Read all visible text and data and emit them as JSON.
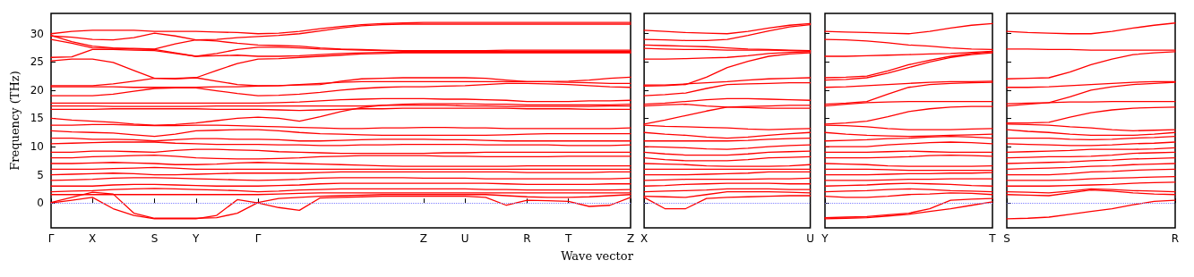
{
  "chart_data": [
    {
      "type": "line",
      "ylabel": "Frequency (THz)",
      "xlabel": "Wave vector",
      "color": "#ff0000",
      "marker": "none",
      "categories": [
        "Γ",
        null,
        "X",
        null,
        null,
        "S",
        null,
        "Y",
        null,
        null,
        "Γ",
        null,
        null,
        null,
        null,
        null,
        null,
        null,
        "Z",
        null,
        "U",
        null,
        null,
        "R",
        null,
        "T",
        null,
        null,
        "Z"
      ],
      "ylim": [
        -4.4,
        33.6
      ],
      "yticks": [
        0,
        5,
        10,
        15,
        20,
        25,
        30
      ],
      "ref_lines": [
        {
          "axis": "y",
          "value": 0,
          "color": "#7f7fff",
          "line_style": "dotted"
        }
      ],
      "series": [
        {
          "values": [
            30.0,
            30.4,
            30.6,
            30.6,
            30.6,
            30.4,
            30.4,
            30.4,
            30.3,
            30.2,
            30.0,
            30.1,
            30.4,
            30.9,
            31.3,
            31.6,
            31.8,
            31.9,
            32.0,
            32.0,
            32.0,
            32.0,
            32.0,
            32.0,
            32.0,
            32.0,
            32.0,
            32.0,
            32.0
          ]
        },
        {
          "values": [
            29.6,
            29.4,
            29.0,
            28.9,
            29.3,
            30.1,
            29.6,
            28.9,
            29.0,
            29.3,
            29.5,
            29.7,
            30.0,
            30.5,
            31.0,
            31.4,
            31.6,
            31.7,
            31.7,
            31.7,
            31.7,
            31.7,
            31.7,
            31.7,
            31.7,
            31.7,
            31.7,
            31.7,
            31.7
          ]
        },
        {
          "values": [
            29.0,
            28.3,
            27.5,
            27.4,
            27.4,
            27.3,
            28.2,
            28.9,
            28.7,
            28.3,
            28.0,
            27.9,
            27.8,
            27.5,
            27.3,
            27.2,
            27.1,
            27.0,
            27.0,
            27.0,
            27.0,
            27.0,
            27.1,
            27.1,
            27.1,
            27.1,
            27.1,
            27.1,
            27.1
          ]
        },
        {
          "values": [
            29.7,
            28.6,
            27.8,
            27.5,
            27.3,
            27.2,
            26.6,
            26.0,
            26.5,
            27.2,
            27.6,
            27.6,
            27.5,
            27.3,
            27.2,
            27.1,
            27.0,
            26.9,
            26.9,
            26.9,
            26.9,
            26.9,
            26.9,
            26.9,
            26.9,
            26.9,
            26.9,
            26.9,
            26.9
          ]
        },
        {
          "values": [
            25.8,
            25.9,
            27.2,
            27.2,
            27.1,
            27.0,
            26.5,
            26.0,
            26.1,
            26.2,
            26.0,
            26.0,
            26.1,
            26.3,
            26.5,
            26.6,
            26.7,
            26.7,
            26.7,
            26.7,
            26.7,
            26.7,
            26.7,
            26.7,
            26.7,
            26.7,
            26.7,
            26.7,
            26.7
          ]
        },
        {
          "values": [
            25.2,
            25.5,
            25.5,
            24.9,
            23.5,
            22.1,
            22.0,
            22.2,
            23.5,
            24.7,
            25.5,
            25.6,
            25.8,
            26.0,
            26.2,
            26.4,
            26.5,
            26.6,
            26.6,
            26.6,
            26.6,
            26.6,
            26.6,
            26.6,
            26.6,
            26.6,
            26.6,
            26.6,
            26.6
          ]
        },
        {
          "values": [
            20.8,
            20.8,
            20.8,
            21.1,
            21.6,
            22.1,
            22.1,
            22.2,
            21.6,
            21.0,
            20.8,
            20.8,
            20.9,
            21.0,
            21.6,
            22.0,
            22.1,
            22.2,
            22.2,
            22.2,
            22.2,
            22.1,
            21.8,
            21.5,
            21.5,
            21.6,
            21.8,
            22.1,
            22.3
          ]
        },
        {
          "values": [
            20.6,
            20.6,
            20.6,
            20.6,
            20.5,
            20.5,
            20.5,
            20.5,
            20.6,
            20.6,
            20.7,
            20.8,
            21.0,
            21.2,
            21.4,
            21.5,
            21.5,
            21.5,
            21.5,
            21.5,
            21.5,
            21.5,
            21.5,
            21.5,
            21.5,
            21.4,
            21.3,
            21.2,
            21.2
          ]
        },
        {
          "values": [
            19.0,
            19.0,
            19.0,
            19.3,
            19.8,
            20.3,
            20.4,
            20.4,
            19.9,
            19.4,
            19.0,
            19.1,
            19.3,
            19.6,
            20.0,
            20.3,
            20.5,
            20.6,
            20.6,
            20.7,
            20.8,
            21.0,
            21.2,
            21.2,
            21.1,
            21.0,
            20.8,
            20.6,
            20.5
          ]
        },
        {
          "values": [
            17.7,
            17.7,
            17.7,
            17.7,
            17.7,
            17.7,
            17.7,
            17.7,
            17.7,
            17.7,
            17.7,
            17.8,
            17.9,
            18.1,
            18.3,
            18.4,
            18.5,
            18.5,
            18.5,
            18.4,
            18.4,
            18.3,
            18.2,
            18.0,
            18.0,
            18.0,
            18.1,
            18.1,
            18.2
          ]
        },
        {
          "values": [
            17.2,
            17.2,
            17.2,
            17.1,
            17.1,
            17.1,
            17.1,
            17.1,
            17.2,
            17.2,
            17.2,
            17.2,
            17.2,
            17.2,
            17.2,
            17.2,
            17.3,
            17.3,
            17.3,
            17.3,
            17.2,
            17.2,
            17.1,
            17.1,
            17.1,
            17.1,
            17.1,
            17.2,
            17.2
          ]
        },
        {
          "values": [
            16.6,
            16.6,
            16.6,
            16.7,
            16.7,
            16.7,
            16.7,
            16.7,
            16.6,
            16.6,
            16.6,
            16.5,
            16.4,
            16.5,
            16.6,
            16.7,
            16.7,
            16.8,
            16.8,
            16.8,
            16.8,
            16.8,
            16.8,
            16.7,
            16.7,
            16.7,
            16.6,
            16.6,
            16.6
          ]
        },
        {
          "values": [
            15.0,
            14.7,
            14.5,
            14.3,
            14.0,
            13.8,
            13.9,
            14.2,
            14.6,
            15.0,
            15.2,
            15.0,
            14.5,
            15.3,
            16.2,
            16.9,
            17.3,
            17.5,
            17.6,
            17.6,
            17.6,
            17.5,
            17.5,
            17.4,
            17.4,
            17.4,
            17.4,
            17.4,
            17.5
          ]
        },
        {
          "values": [
            13.8,
            13.8,
            13.9,
            13.9,
            13.8,
            13.7,
            13.7,
            13.8,
            13.8,
            13.7,
            13.6,
            13.5,
            13.4,
            13.3,
            13.2,
            13.2,
            13.3,
            13.3,
            13.4,
            13.4,
            13.3,
            13.3,
            13.2,
            13.2,
            13.2,
            13.2,
            13.2,
            13.2,
            13.3
          ]
        },
        {
          "values": [
            12.8,
            12.6,
            12.5,
            12.4,
            12.1,
            11.8,
            12.2,
            12.8,
            12.9,
            13.0,
            13.0,
            12.8,
            12.5,
            12.3,
            12.2,
            12.1,
            12.0,
            12.0,
            12.0,
            12.0,
            12.0,
            12.0,
            12.1,
            12.2,
            12.3,
            12.3,
            12.3,
            12.3,
            12.3
          ]
        },
        {
          "values": [
            11.5,
            11.5,
            11.3,
            11.3,
            11.2,
            11.0,
            11.2,
            11.4,
            11.4,
            11.3,
            11.3,
            11.2,
            11.0,
            11.0,
            11.1,
            11.2,
            11.3,
            11.3,
            11.3,
            11.2,
            11.2,
            11.1,
            11.0,
            11.0,
            11.0,
            11.0,
            11.0,
            11.0,
            11.0
          ]
        },
        {
          "values": [
            10.5,
            10.6,
            10.7,
            10.8,
            10.8,
            10.8,
            10.6,
            10.5,
            10.4,
            10.4,
            10.4,
            10.3,
            10.3,
            10.2,
            10.2,
            10.3,
            10.3,
            10.4,
            10.4,
            10.4,
            10.4,
            10.3,
            10.3,
            10.3,
            10.3,
            10.2,
            10.2,
            10.2,
            10.3
          ]
        },
        {
          "values": [
            9.0,
            9.0,
            9.2,
            9.2,
            9.1,
            9.0,
            9.3,
            9.5,
            9.5,
            9.4,
            9.3,
            9.1,
            9.0,
            8.9,
            8.8,
            8.8,
            8.8,
            8.8,
            8.8,
            8.9,
            8.9,
            9.0,
            9.0,
            9.0,
            9.0,
            9.0,
            9.0,
            9.0,
            9.0
          ]
        },
        {
          "values": [
            8.0,
            8.0,
            8.2,
            8.3,
            8.4,
            8.5,
            8.3,
            8.0,
            7.9,
            7.8,
            7.8,
            7.9,
            8.0,
            8.2,
            8.3,
            8.4,
            8.4,
            8.4,
            8.4,
            8.3,
            8.3,
            8.2,
            8.2,
            8.2,
            8.2,
            8.3,
            8.3,
            8.3,
            8.3
          ]
        },
        {
          "values": [
            7.0,
            7.0,
            7.1,
            7.2,
            7.1,
            7.0,
            6.8,
            6.8,
            6.9,
            7.1,
            7.2,
            7.1,
            7.0,
            6.9,
            6.8,
            6.7,
            6.6,
            6.5,
            6.5,
            6.5,
            6.5,
            6.5,
            6.5,
            6.6,
            6.6,
            6.6,
            6.6,
            6.6,
            6.6
          ]
        },
        {
          "values": [
            6.0,
            6.0,
            6.0,
            6.1,
            6.2,
            6.3,
            6.2,
            6.0,
            6.0,
            6.0,
            6.0,
            6.0,
            6.0,
            6.0,
            6.0,
            6.0,
            6.0,
            6.0,
            6.0,
            6.0,
            6.0,
            6.0,
            6.0,
            6.0,
            6.0,
            6.0,
            6.0,
            6.0,
            6.0
          ]
        },
        {
          "values": [
            5.0,
            5.1,
            5.2,
            5.3,
            5.2,
            5.0,
            5.0,
            5.1,
            5.2,
            5.3,
            5.3,
            5.3,
            5.3,
            5.4,
            5.5,
            5.5,
            5.5,
            5.5,
            5.5,
            5.5,
            5.5,
            5.5,
            5.5,
            5.4,
            5.4,
            5.4,
            5.4,
            5.5,
            5.5
          ]
        },
        {
          "values": [
            4.0,
            4.1,
            4.2,
            4.4,
            4.5,
            4.5,
            4.4,
            4.3,
            4.2,
            4.1,
            4.0,
            4.1,
            4.2,
            4.4,
            4.5,
            4.5,
            4.5,
            4.5,
            4.4,
            4.4,
            4.4,
            4.3,
            4.3,
            4.3,
            4.3,
            4.3,
            4.3,
            4.3,
            4.4
          ]
        },
        {
          "values": [
            3.0,
            3.0,
            3.0,
            3.2,
            3.3,
            3.3,
            3.2,
            3.1,
            3.0,
            3.0,
            3.0,
            3.1,
            3.2,
            3.4,
            3.5,
            3.5,
            3.5,
            3.5,
            3.5,
            3.5,
            3.5,
            3.5,
            3.4,
            3.3,
            3.3,
            3.3,
            3.3,
            3.4,
            3.4
          ]
        },
        {
          "values": [
            2.0,
            2.1,
            2.2,
            2.4,
            2.5,
            2.6,
            2.5,
            2.4,
            2.3,
            2.2,
            2.0,
            2.1,
            2.3,
            2.4,
            2.5,
            2.5,
            2.5,
            2.5,
            2.5,
            2.5,
            2.5,
            2.4,
            2.4,
            2.3,
            2.3,
            2.3,
            2.3,
            2.3,
            2.4
          ]
        },
        {
          "values": [
            1.5,
            1.5,
            1.5,
            1.5,
            1.5,
            1.5,
            1.5,
            1.5,
            1.5,
            1.5,
            1.5,
            1.6,
            1.7,
            1.8,
            1.8,
            1.8,
            1.8,
            1.8,
            1.8,
            1.8,
            1.8,
            1.8,
            1.8,
            1.8,
            1.8,
            1.8,
            1.8,
            1.8,
            1.8
          ]
        },
        {
          "values": [
            0,
            0.5,
            1.0,
            -1.0,
            -2.2,
            -2.8,
            -2.8,
            -2.8,
            -2.2,
            0.6,
            0,
            -0.8,
            -1.3,
            0.9,
            1.0,
            1.1,
            1.2,
            1.2,
            1.2,
            1.2,
            1.2,
            1.0,
            -0.4,
            0.5,
            0.4,
            0.3,
            -0.6,
            -0.4,
            1.0
          ]
        },
        {
          "values": [
            0.1,
            1.0,
            1.9,
            1.6,
            -1.8,
            -2.7,
            -2.7,
            -2.7,
            -2.6,
            -1.8,
            0.1,
            0.8,
            1.0,
            1.2,
            1.3,
            1.4,
            1.5,
            1.5,
            1.5,
            1.5,
            1.5,
            1.5,
            1.3,
            1.1,
            1.0,
            1.0,
            1.1,
            1.3,
            1.5
          ]
        }
      ]
    },
    {
      "type": "line",
      "color": "#ff0000",
      "marker": "none",
      "tick_labels": "x",
      "categories": [
        "X",
        null,
        null,
        null,
        null,
        null,
        null,
        null,
        "U"
      ],
      "ylim": [
        -4.4,
        33.6
      ],
      "yticks": [
        0,
        5,
        10,
        15,
        20,
        25,
        30
      ],
      "ref_lines": [
        {
          "axis": "y",
          "value": 0,
          "color": "#7f7fff",
          "line_style": "dotted"
        }
      ],
      "series": [
        {
          "values": [
            30.6,
            30.4,
            30.2,
            30.1,
            30.0,
            30.4,
            31.0,
            31.5,
            31.8
          ]
        },
        {
          "values": [
            29.0,
            28.9,
            28.8,
            28.8,
            29.0,
            29.7,
            30.5,
            31.2,
            31.6
          ]
        },
        {
          "values": [
            28.0,
            27.9,
            27.8,
            27.7,
            27.5,
            27.3,
            27.2,
            27.1,
            27.0
          ]
        },
        {
          "values": [
            27.4,
            27.3,
            27.2,
            27.2,
            27.1,
            27.1,
            27.1,
            27.0,
            26.9
          ]
        },
        {
          "values": [
            25.5,
            25.5,
            25.6,
            25.7,
            25.8,
            26.1,
            26.5,
            26.7,
            26.8
          ]
        },
        {
          "values": [
            20.7,
            20.8,
            21.0,
            22.3,
            24.0,
            25.1,
            26.0,
            26.4,
            26.6
          ]
        },
        {
          "values": [
            20.9,
            20.9,
            21.1,
            21.3,
            21.5,
            21.8,
            22.0,
            22.1,
            22.2
          ]
        },
        {
          "values": [
            19.0,
            19.2,
            19.5,
            20.3,
            21.0,
            21.1,
            21.2,
            21.3,
            21.3
          ]
        },
        {
          "values": [
            17.5,
            17.7,
            18.0,
            18.3,
            18.5,
            18.5,
            18.4,
            18.3,
            18.2
          ]
        },
        {
          "values": [
            17.2,
            17.4,
            17.5,
            17.2,
            17.0,
            16.9,
            16.8,
            16.8,
            16.8
          ]
        },
        {
          "values": [
            14.0,
            14.7,
            15.5,
            16.3,
            17.0,
            17.1,
            17.2,
            17.3,
            17.3
          ]
        },
        {
          "values": [
            13.8,
            13.6,
            13.5,
            13.4,
            13.3,
            13.1,
            13.0,
            13.1,
            13.2
          ]
        },
        {
          "values": [
            12.5,
            12.2,
            12.0,
            11.7,
            11.5,
            11.7,
            12.0,
            12.3,
            12.5
          ]
        },
        {
          "values": [
            11.0,
            11.0,
            11.0,
            11.0,
            11.0,
            11.1,
            11.3,
            11.4,
            11.5
          ]
        },
        {
          "values": [
            10.0,
            9.9,
            9.8,
            9.6,
            9.5,
            9.7,
            10.0,
            10.2,
            10.3
          ]
        },
        {
          "values": [
            9.0,
            8.7,
            8.5,
            8.5,
            8.5,
            8.7,
            9.0,
            9.1,
            9.2
          ]
        },
        {
          "values": [
            8.0,
            7.7,
            7.5,
            7.5,
            7.5,
            7.7,
            8.0,
            8.1,
            8.2
          ]
        },
        {
          "values": [
            7.0,
            6.9,
            6.8,
            6.6,
            6.5,
            6.5,
            6.5,
            6.6,
            6.8
          ]
        },
        {
          "values": [
            6.0,
            6.0,
            6.0,
            6.0,
            6.0,
            6.0,
            6.0,
            6.0,
            6.0
          ]
        },
        {
          "values": [
            5.0,
            5.0,
            5.0,
            5.1,
            5.2,
            5.3,
            5.5,
            5.5,
            5.5
          ]
        },
        {
          "values": [
            4.0,
            4.1,
            4.2,
            4.2,
            4.2,
            4.2,
            4.3,
            4.3,
            4.4
          ]
        },
        {
          "values": [
            3.0,
            3.1,
            3.3,
            3.4,
            3.5,
            3.5,
            3.5,
            3.4,
            3.4
          ]
        },
        {
          "values": [
            2.0,
            2.1,
            2.2,
            2.3,
            2.5,
            2.5,
            2.5,
            2.4,
            2.4
          ]
        },
        {
          "values": [
            1.2,
            1.1,
            1.0,
            1.5,
            2.0,
            2.0,
            2.0,
            1.9,
            1.8
          ]
        },
        {
          "values": [
            1.0,
            -1.0,
            -1.0,
            0.8,
            1.0,
            1.1,
            1.2,
            1.3,
            1.3
          ]
        }
      ]
    },
    {
      "type": "line",
      "color": "#ff0000",
      "marker": "none",
      "tick_labels": "x",
      "categories": [
        "Y",
        null,
        null,
        null,
        null,
        null,
        null,
        null,
        "T"
      ],
      "ylim": [
        -4.4,
        33.6
      ],
      "yticks": [
        0,
        5,
        10,
        15,
        20,
        25,
        30
      ],
      "ref_lines": [
        {
          "axis": "y",
          "value": 0,
          "color": "#7f7fff",
          "line_style": "dotted"
        }
      ],
      "series": [
        {
          "values": [
            30.4,
            30.3,
            30.2,
            30.1,
            30.0,
            30.4,
            31.0,
            31.5,
            31.8
          ]
        },
        {
          "values": [
            29.0,
            28.9,
            28.7,
            28.4,
            28.0,
            27.8,
            27.5,
            27.3,
            27.2
          ]
        },
        {
          "values": [
            26.0,
            26.0,
            26.1,
            26.2,
            26.3,
            26.4,
            26.5,
            26.7,
            26.9
          ]
        },
        {
          "values": [
            22.2,
            22.3,
            22.5,
            23.4,
            24.5,
            25.3,
            26.0,
            26.5,
            26.8
          ]
        },
        {
          "values": [
            21.8,
            21.9,
            22.2,
            23.0,
            24.0,
            25.0,
            25.8,
            26.3,
            26.6
          ]
        },
        {
          "values": [
            20.5,
            20.6,
            20.8,
            21.0,
            21.2,
            21.4,
            21.5,
            21.5,
            21.6
          ]
        },
        {
          "values": [
            17.5,
            17.7,
            18.0,
            19.3,
            20.5,
            21.0,
            21.2,
            21.3,
            21.4
          ]
        },
        {
          "values": [
            17.2,
            17.5,
            17.8,
            17.9,
            18.0,
            18.0,
            18.0,
            18.0,
            18.0
          ]
        },
        {
          "values": [
            14.0,
            14.2,
            14.5,
            15.3,
            16.2,
            16.7,
            17.0,
            17.1,
            17.1
          ]
        },
        {
          "values": [
            13.8,
            13.7,
            13.5,
            13.2,
            13.0,
            13.0,
            13.0,
            13.1,
            13.2
          ]
        },
        {
          "values": [
            12.5,
            12.2,
            12.0,
            11.9,
            11.8,
            11.9,
            12.0,
            12.1,
            12.2
          ]
        },
        {
          "values": [
            11.0,
            11.1,
            11.2,
            11.4,
            11.5,
            11.7,
            11.8,
            11.7,
            11.5
          ]
        },
        {
          "values": [
            10.0,
            10.0,
            10.0,
            10.3,
            10.5,
            10.7,
            10.8,
            10.7,
            10.5
          ]
        },
        {
          "values": [
            9.0,
            9.0,
            9.0,
            9.1,
            9.2,
            9.1,
            9.0,
            9.0,
            9.0
          ]
        },
        {
          "values": [
            8.0,
            8.0,
            8.0,
            8.1,
            8.2,
            8.4,
            8.5,
            8.4,
            8.3
          ]
        },
        {
          "values": [
            7.0,
            6.9,
            6.8,
            6.6,
            6.5,
            6.5,
            6.5,
            6.5,
            6.6
          ]
        },
        {
          "values": [
            6.0,
            6.0,
            6.0,
            5.9,
            5.8,
            5.8,
            5.8,
            5.8,
            5.8
          ]
        },
        {
          "values": [
            5.0,
            5.0,
            5.0,
            5.1,
            5.2,
            5.2,
            5.3,
            5.3,
            5.4
          ]
        },
        {
          "values": [
            4.0,
            4.0,
            4.0,
            4.1,
            4.2,
            4.2,
            4.3,
            4.3,
            4.3
          ]
        },
        {
          "values": [
            3.0,
            3.1,
            3.2,
            3.4,
            3.5,
            3.4,
            3.3,
            3.1,
            3.0
          ]
        },
        {
          "values": [
            2.0,
            2.1,
            2.2,
            2.4,
            2.5,
            2.4,
            2.2,
            2.1,
            2.0
          ]
        },
        {
          "values": [
            1.2,
            1.0,
            1.0,
            1.2,
            1.5,
            1.6,
            1.8,
            1.7,
            1.5
          ]
        },
        {
          "values": [
            -2.8,
            -2.7,
            -2.6,
            -2.3,
            -2.0,
            -1.5,
            -1.0,
            -0.4,
            0.2
          ]
        },
        {
          "values": [
            -2.6,
            -2.5,
            -2.4,
            -2.1,
            -1.8,
            -1.0,
            0.5,
            0.7,
            0.8
          ]
        }
      ]
    },
    {
      "type": "line",
      "color": "#ff0000",
      "marker": "none",
      "tick_labels": "x",
      "categories": [
        "S",
        null,
        null,
        null,
        null,
        null,
        null,
        null,
        "R"
      ],
      "ylim": [
        -4.4,
        33.6
      ],
      "yticks": [
        0,
        5,
        10,
        15,
        20,
        25,
        30
      ],
      "ref_lines": [
        {
          "axis": "y",
          "value": 0,
          "color": "#7f7fff",
          "line_style": "dotted"
        }
      ],
      "series": [
        {
          "values": [
            30.4,
            30.2,
            30.1,
            30.0,
            30.0,
            30.4,
            31.0,
            31.5,
            31.9
          ]
        },
        {
          "values": [
            27.3,
            27.3,
            27.2,
            27.2,
            27.1,
            27.1,
            27.1,
            27.1,
            27.1
          ]
        },
        {
          "values": [
            22.0,
            22.1,
            22.2,
            23.2,
            24.5,
            25.5,
            26.3,
            26.6,
            26.8
          ]
        },
        {
          "values": [
            20.5,
            20.5,
            20.6,
            20.8,
            21.0,
            21.2,
            21.4,
            21.5,
            21.5
          ]
        },
        {
          "values": [
            17.6,
            17.7,
            17.8,
            18.8,
            20.0,
            20.6,
            21.0,
            21.2,
            21.4
          ]
        },
        {
          "values": [
            17.2,
            17.5,
            17.8,
            17.9,
            17.9,
            18.0,
            18.0,
            18.0,
            18.0
          ]
        },
        {
          "values": [
            14.2,
            14.2,
            14.3,
            15.2,
            16.0,
            16.5,
            16.8,
            16.9,
            17.0
          ]
        },
        {
          "values": [
            14.0,
            13.9,
            13.8,
            13.5,
            13.3,
            13.0,
            12.8,
            12.9,
            13.0
          ]
        },
        {
          "values": [
            13.0,
            12.7,
            12.5,
            12.2,
            12.0,
            12.0,
            12.0,
            12.2,
            12.5
          ]
        },
        {
          "values": [
            11.5,
            11.5,
            11.5,
            11.3,
            11.2,
            11.3,
            11.5,
            11.6,
            11.8
          ]
        },
        {
          "values": [
            10.5,
            10.4,
            10.3,
            10.2,
            10.2,
            10.3,
            10.5,
            10.6,
            10.8
          ]
        },
        {
          "values": [
            9.0,
            9.1,
            9.2,
            9.3,
            9.5,
            9.5,
            9.5,
            9.6,
            9.8
          ]
        },
        {
          "values": [
            8.0,
            8.1,
            8.2,
            8.2,
            8.3,
            8.5,
            8.8,
            8.9,
            9.0
          ]
        },
        {
          "values": [
            7.0,
            7.1,
            7.2,
            7.3,
            7.5,
            7.6,
            7.8,
            7.9,
            8.0
          ]
        },
        {
          "values": [
            6.0,
            6.1,
            6.2,
            6.3,
            6.5,
            6.6,
            6.8,
            6.9,
            7.0
          ]
        },
        {
          "values": [
            5.0,
            5.0,
            5.0,
            5.2,
            5.5,
            5.6,
            5.8,
            5.9,
            6.0
          ]
        },
        {
          "values": [
            4.0,
            4.0,
            4.0,
            4.1,
            4.3,
            4.4,
            4.5,
            4.6,
            4.7
          ]
        },
        {
          "values": [
            3.0,
            3.0,
            3.0,
            3.1,
            3.2,
            3.3,
            3.5,
            3.6,
            3.7
          ]
        },
        {
          "values": [
            2.0,
            1.9,
            1.8,
            2.1,
            2.5,
            2.4,
            2.2,
            2.1,
            2.0
          ]
        },
        {
          "values": [
            1.5,
            1.4,
            1.3,
            1.8,
            2.3,
            2.1,
            1.8,
            1.6,
            1.5
          ]
        },
        {
          "values": [
            -2.8,
            -2.7,
            -2.5,
            -2.0,
            -1.5,
            -1.0,
            -0.3,
            0.3,
            0.5
          ]
        }
      ]
    }
  ]
}
